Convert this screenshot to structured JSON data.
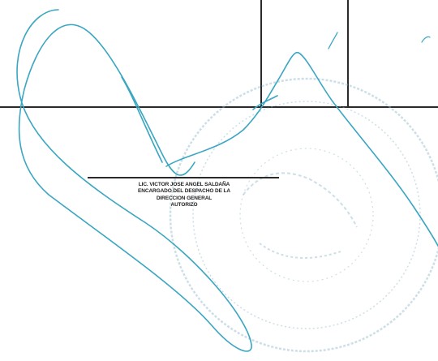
{
  "signer": {
    "line1": "LIC. VICTOR JOSE ANGEL SALDAÑA",
    "line2": "ENCARGADO DEL DESPACHO DE LA",
    "line3": "DIRECCION GENERAL",
    "line4": "AUTORIZO"
  },
  "colors": {
    "ink": "#2a2a2a",
    "signature": "#3aa6c2",
    "stamp": "#8fb7c7"
  }
}
